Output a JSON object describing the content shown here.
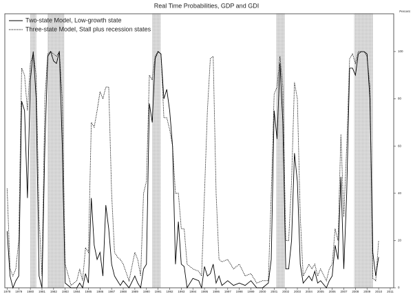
{
  "chart_data": {
    "type": "line",
    "title": "Real Time Probabilities, GDP and GDI",
    "y_label": "Percent",
    "legend": "upper left",
    "x": [
      1978,
      1978.25,
      1978.5,
      1978.75,
      1979,
      1979.25,
      1979.5,
      1979.75,
      1980,
      1980.25,
      1980.5,
      1980.75,
      1981,
      1981.25,
      1981.5,
      1981.75,
      1982,
      1982.25,
      1982.5,
      1982.75,
      1983,
      1983.5,
      1984,
      1984.25,
      1984.5,
      1984.75,
      1985,
      1985.25,
      1985.5,
      1985.75,
      1986,
      1986.25,
      1986.5,
      1986.75,
      1987,
      1987.25,
      1987.5,
      1987.75,
      1988,
      1988.5,
      1989,
      1989.25,
      1989.5,
      1989.75,
      1990,
      1990.25,
      1990.5,
      1990.75,
      1991,
      1991.25,
      1991.5,
      1991.75,
      1992,
      1992.25,
      1992.5,
      1992.75,
      1993,
      1993.25,
      1993.5,
      1994,
      1994.5,
      1994.75,
      1995,
      1995.25,
      1995.5,
      1995.75,
      1996,
      1996.25,
      1996.5,
      1997,
      1997.5,
      1998,
      1998.5,
      1999,
      1999.5,
      2000,
      2000.5,
      2000.75,
      2001,
      2001.25,
      2001.5,
      2001.75,
      2002,
      2002.25,
      2002.5,
      2002.75,
      2003,
      2003.25,
      2003.5,
      2004,
      2004.25,
      2004.5,
      2004.75,
      2005,
      2005.5,
      2005.75,
      2006,
      2006.25,
      2006.5,
      2006.75,
      2007,
      2007.25,
      2007.5,
      2007.75,
      2008,
      2008.25,
      2008.5,
      2008.75,
      2009,
      2009.25,
      2009.5,
      2009.75,
      2010
    ],
    "series": [
      {
        "name": "Two-state Model, Low-growth state",
        "color": "#000000",
        "dash": "solid",
        "values": [
          24,
          5,
          0,
          3,
          5,
          79,
          75,
          38,
          88,
          100,
          80,
          5,
          0,
          60,
          98,
          100,
          96,
          95,
          100,
          60,
          2,
          0,
          0,
          2,
          0,
          6,
          2,
          38,
          18,
          12,
          15,
          5,
          35,
          25,
          10,
          5,
          3,
          1,
          3,
          0,
          5,
          2,
          0,
          8,
          10,
          78,
          70,
          97,
          100,
          99,
          80,
          84,
          75,
          60,
          10,
          28,
          10,
          9,
          0,
          4,
          3,
          0,
          9,
          5,
          6,
          10,
          2,
          5,
          1,
          3,
          1,
          2,
          1,
          3,
          0,
          0,
          2,
          12,
          75,
          63,
          95,
          70,
          8,
          8,
          20,
          57,
          45,
          10,
          2,
          5,
          3,
          7,
          2,
          3,
          0,
          3,
          5,
          18,
          12,
          47,
          8,
          40,
          93,
          93,
          90,
          99,
          100,
          100,
          99,
          80,
          15,
          5,
          13
        ]
      },
      {
        "name": "Three-state Model, Stall plus recession states",
        "color": "#000000",
        "dash": "dotted",
        "values": [
          42,
          8,
          5,
          8,
          20,
          93,
          90,
          75,
          95,
          99,
          90,
          30,
          5,
          80,
          99,
          100,
          99,
          98,
          100,
          80,
          10,
          1,
          3,
          8,
          3,
          17,
          15,
          70,
          68,
          75,
          83,
          80,
          85,
          85,
          40,
          15,
          13,
          12,
          10,
          3,
          15,
          12,
          5,
          40,
          45,
          90,
          88,
          98,
          100,
          99,
          72,
          72,
          67,
          60,
          40,
          40,
          25,
          25,
          10,
          8,
          7,
          5,
          40,
          75,
          97,
          98,
          40,
          12,
          11,
          12,
          8,
          10,
          5,
          6,
          2,
          3,
          3,
          40,
          82,
          85,
          98,
          85,
          20,
          20,
          45,
          87,
          80,
          30,
          5,
          10,
          8,
          10,
          5,
          8,
          3,
          8,
          10,
          25,
          20,
          65,
          30,
          60,
          97,
          99,
          95,
          100,
          100,
          100,
          98,
          85,
          4,
          3,
          20
        ]
      }
    ],
    "recessions": [
      [
        1980.0,
        1980.5
      ],
      [
        1981.5,
        1982.9
      ],
      [
        1990.5,
        1991.2
      ],
      [
        2001.2,
        2001.9
      ],
      [
        2007.9,
        2009.5
      ]
    ],
    "recession_color": "#c8c8c8",
    "xlim": [
      1977.8,
      2011.3
    ],
    "xticks": [
      1978,
      1979,
      1980,
      1981,
      1982,
      1983,
      1984,
      1985,
      1986,
      1987,
      1988,
      1989,
      1990,
      1991,
      1992,
      1993,
      1994,
      1995,
      1996,
      1997,
      1998,
      1999,
      2000,
      2001,
      2002,
      2003,
      2004,
      2005,
      2006,
      2007,
      2008,
      2009,
      2010,
      2011
    ],
    "ylim": [
      0,
      116
    ],
    "yticks": [
      0,
      20,
      40,
      60,
      80,
      100
    ],
    "grid": false
  }
}
